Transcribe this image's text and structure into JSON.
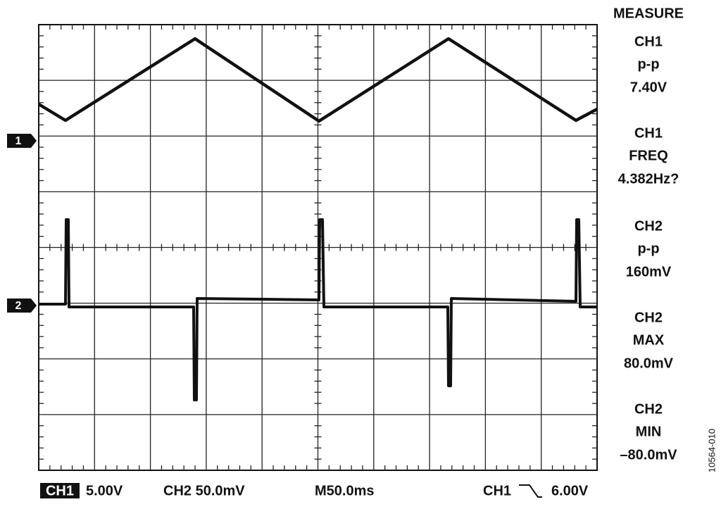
{
  "measure": {
    "title": "MEASURE",
    "items": [
      {
        "channel": "CH1",
        "label": "p-p",
        "value": "7.40V"
      },
      {
        "channel": "CH1",
        "label": "FREQ",
        "value": "4.382Hz?"
      },
      {
        "channel": "CH2",
        "label": "p-p",
        "value": "160mV"
      },
      {
        "channel": "CH2",
        "label": "MAX",
        "value": "80.0mV"
      },
      {
        "channel": "CH2",
        "label": "MIN",
        "value": "–80.0mV"
      }
    ]
  },
  "markers": [
    "1",
    "2"
  ],
  "status": {
    "ch1_box": "CH1",
    "ch1_scale": "5.00V",
    "ch2_scale": "CH2 50.0mV",
    "timebase": "M50.0ms",
    "trigger_source": "CH1",
    "trigger_level": "6.00V"
  },
  "figure_id": "10564-010"
}
